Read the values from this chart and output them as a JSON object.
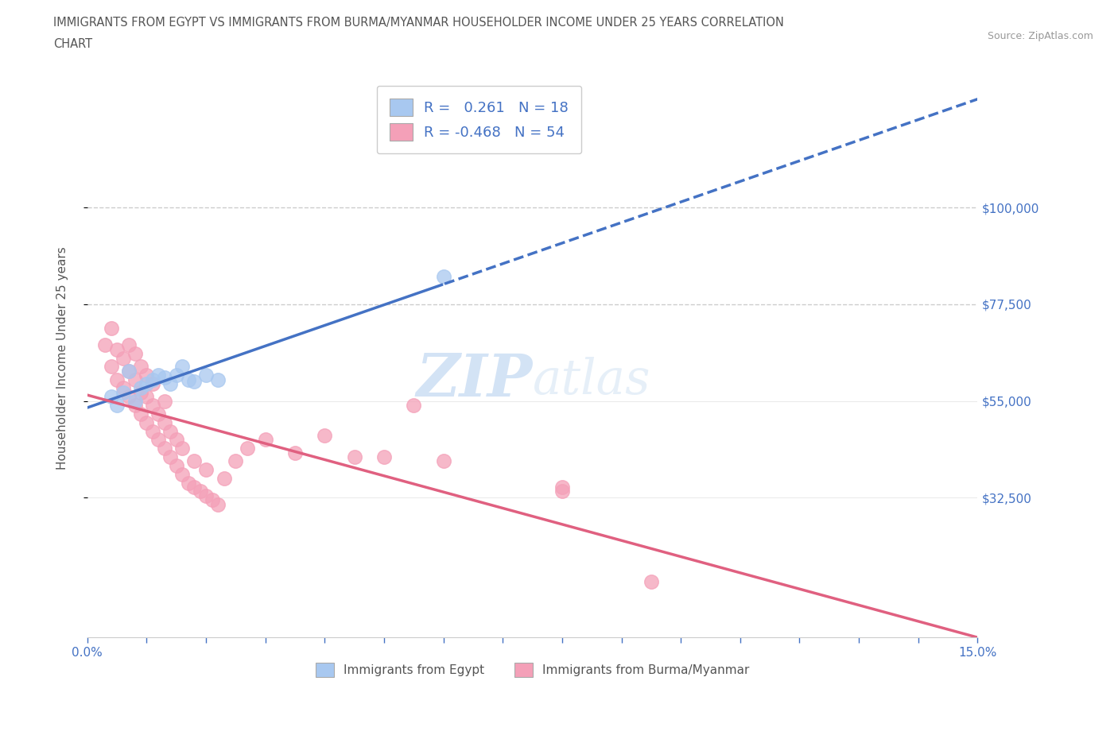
{
  "title_line1": "IMMIGRANTS FROM EGYPT VS IMMIGRANTS FROM BURMA/MYANMAR HOUSEHOLDER INCOME UNDER 25 YEARS CORRELATION",
  "title_line2": "CHART",
  "source": "Source: ZipAtlas.com",
  "ylabel": "Householder Income Under 25 years",
  "egypt_color": "#a8c8f0",
  "burma_color": "#f4a0b8",
  "egypt_line_color": "#4472c4",
  "burma_line_color": "#e06080",
  "text_color": "#555555",
  "right_tick_color": "#4472c4",
  "xtick_color": "#4472c4",
  "R_egypt": 0.261,
  "N_egypt": 18,
  "R_burma": -0.468,
  "N_burma": 54,
  "xlim": [
    0.0,
    0.15
  ],
  "ylim": [
    0,
    130000
  ],
  "ytick_positions": [
    32500,
    55000,
    77500,
    100000
  ],
  "ytick_labels": [
    "$32,500",
    "$55,000",
    "$77,500",
    "$100,000"
  ],
  "egypt_x": [
    0.004,
    0.005,
    0.006,
    0.007,
    0.008,
    0.009,
    0.01,
    0.011,
    0.012,
    0.013,
    0.014,
    0.015,
    0.016,
    0.017,
    0.018,
    0.02,
    0.022,
    0.06
  ],
  "egypt_y": [
    56000,
    54000,
    57000,
    62000,
    55000,
    58000,
    59000,
    60000,
    61000,
    60500,
    59000,
    61000,
    63000,
    60000,
    59500,
    61000,
    60000,
    84000
  ],
  "burma_x": [
    0.003,
    0.004,
    0.004,
    0.005,
    0.005,
    0.006,
    0.006,
    0.007,
    0.007,
    0.007,
    0.008,
    0.008,
    0.008,
    0.009,
    0.009,
    0.009,
    0.01,
    0.01,
    0.01,
    0.011,
    0.011,
    0.011,
    0.012,
    0.012,
    0.013,
    0.013,
    0.013,
    0.014,
    0.014,
    0.015,
    0.015,
    0.016,
    0.016,
    0.017,
    0.018,
    0.018,
    0.019,
    0.02,
    0.02,
    0.021,
    0.022,
    0.023,
    0.025,
    0.027,
    0.03,
    0.035,
    0.04,
    0.045,
    0.05,
    0.055,
    0.06,
    0.08,
    0.095,
    0.08
  ],
  "burma_y": [
    68000,
    63000,
    72000,
    60000,
    67000,
    58000,
    65000,
    56000,
    62000,
    68000,
    54000,
    60000,
    66000,
    52000,
    57000,
    63000,
    50000,
    56000,
    61000,
    48000,
    54000,
    59000,
    46000,
    52000,
    44000,
    50000,
    55000,
    42000,
    48000,
    40000,
    46000,
    38000,
    44000,
    36000,
    35000,
    41000,
    34000,
    33000,
    39000,
    32000,
    31000,
    37000,
    41000,
    44000,
    46000,
    43000,
    47000,
    42000,
    42000,
    54000,
    41000,
    34000,
    13000,
    35000
  ]
}
